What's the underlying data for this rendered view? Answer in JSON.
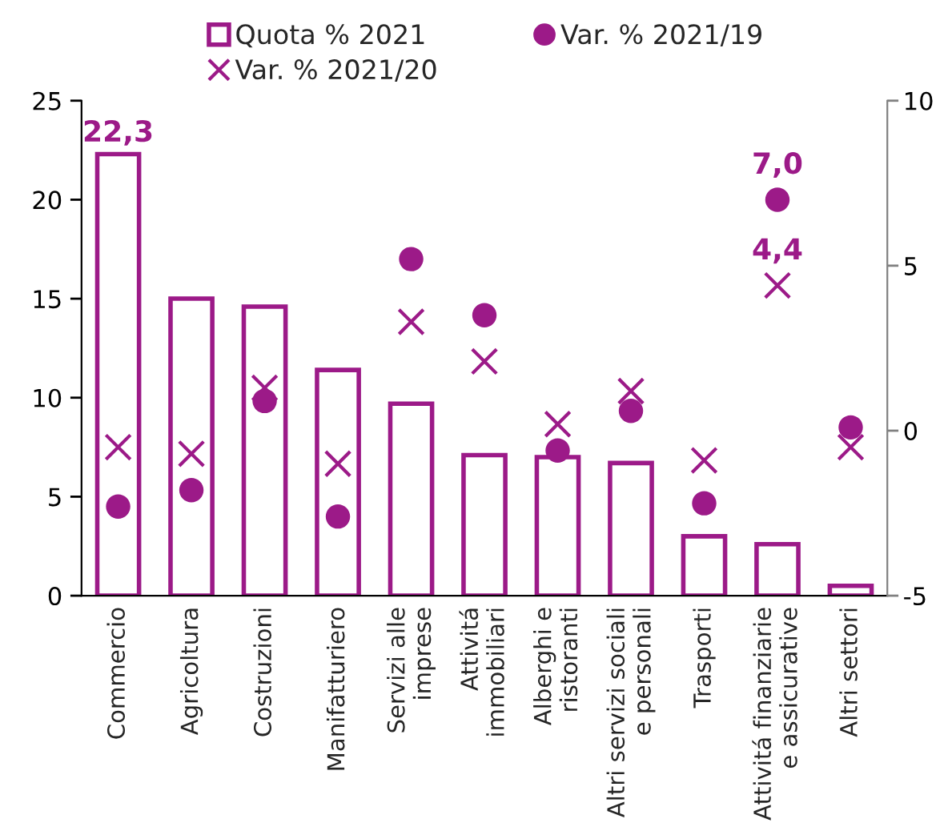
{
  "chart_data": {
    "type": "bar",
    "categories": [
      "Commercio",
      "Agricoltura",
      "Costruzioni",
      "Manifatturiero",
      "Servizi alle\nimprese",
      "Attivitá\nimmobiliari",
      "Alberghi e\nristoranti",
      "Altri servizi sociali\ne personali",
      "Trasporti",
      "Attivitá finanziarie\ne assicurative",
      "Altri settori"
    ],
    "series": [
      {
        "name": "Quota % 2021",
        "color": "#9c1a88",
        "values": [
          22.3,
          15.0,
          14.6,
          11.4,
          9.7,
          7.1,
          7.0,
          6.7,
          3.0,
          2.6,
          0.5
        ],
        "value_labels": [
          "22,3",
          null,
          null,
          null,
          null,
          null,
          null,
          null,
          null,
          null,
          null
        ]
      },
      {
        "name": "Var. % 2021/19",
        "type": "scatter",
        "axis": "y2",
        "marker": "circle",
        "color": "#9c1a88",
        "values": [
          -2.3,
          -1.8,
          0.9,
          -2.6,
          5.2,
          3.5,
          -0.6,
          0.6,
          -2.2,
          7.0,
          0.1
        ],
        "value_labels": [
          null,
          null,
          null,
          null,
          null,
          null,
          null,
          null,
          null,
          "7,0",
          null
        ]
      },
      {
        "name": "Var. % 2021/20",
        "type": "scatter",
        "axis": "y2",
        "marker": "cross",
        "color": "#9c1a88",
        "values": [
          -0.5,
          -0.7,
          1.3,
          -1.0,
          3.3,
          2.1,
          0.2,
          1.2,
          -0.9,
          4.4,
          -0.5
        ],
        "value_labels": [
          null,
          null,
          null,
          null,
          null,
          null,
          null,
          null,
          null,
          "4,4",
          null
        ]
      }
    ],
    "ylim": [
      0,
      25
    ],
    "yticks": [
      0,
      5,
      10,
      15,
      20,
      25
    ],
    "y2lim": [
      -5,
      10
    ],
    "y2ticks": [
      -5,
      0,
      5,
      10
    ],
    "legend": "top"
  }
}
